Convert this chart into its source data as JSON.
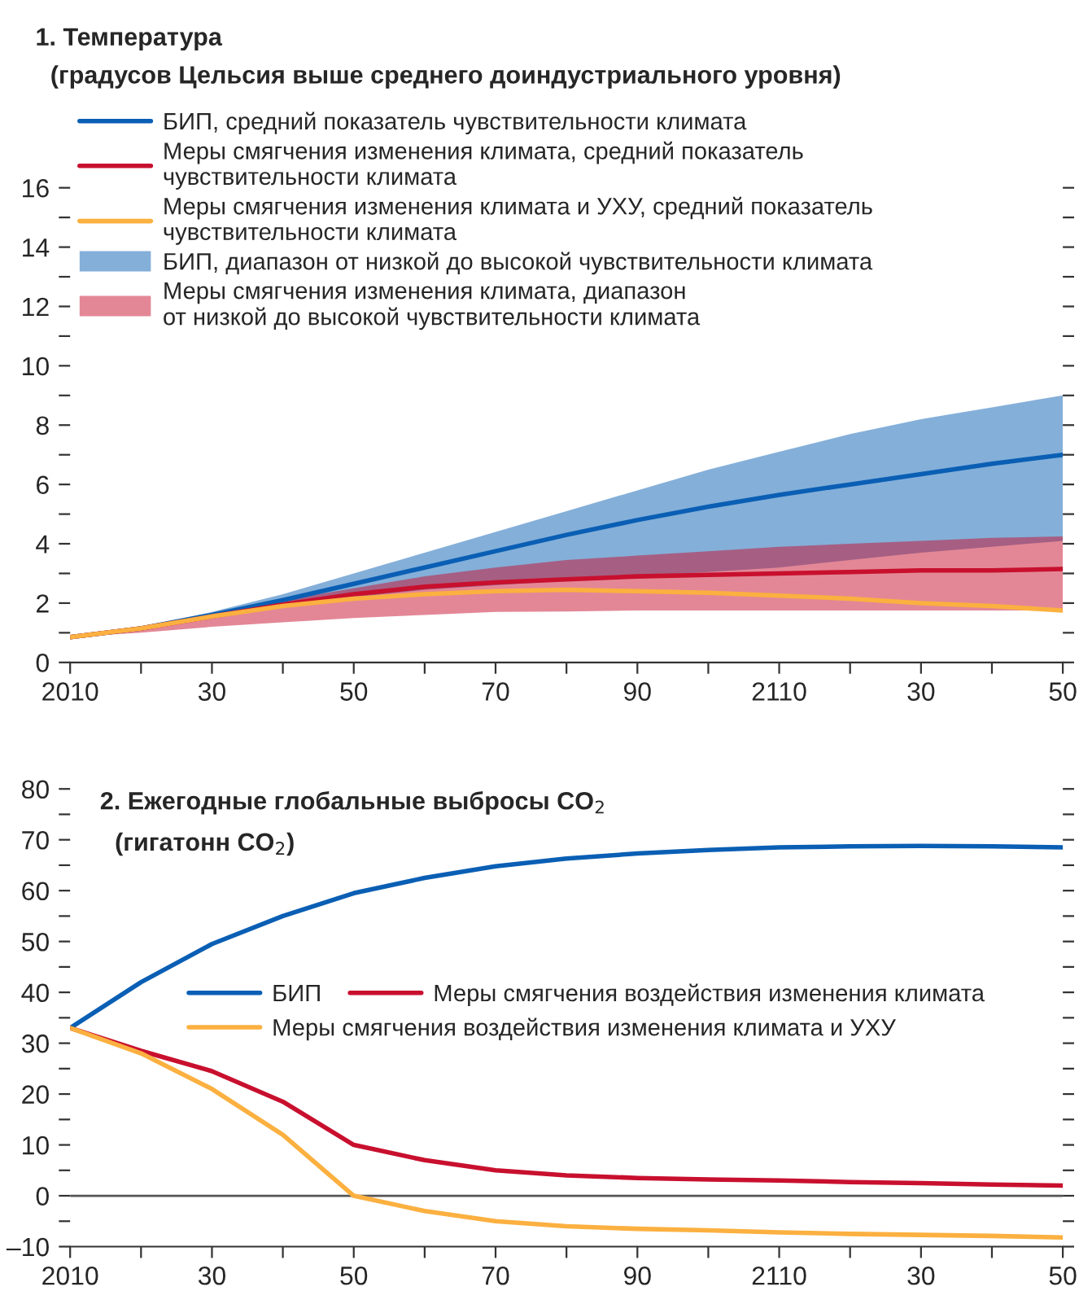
{
  "chart_data": [
    {
      "type": "line",
      "title": "1. Температура",
      "subtitle": "(градусов Цельсия выше среднего доиндустриального уровня)",
      "categories": [
        "2010",
        null,
        "30",
        null,
        "50",
        null,
        "70",
        null,
        "90",
        null,
        "2110",
        null,
        "30",
        null,
        "50"
      ],
      "series": [
        {
          "name": "БИП, средний показатель чувствительности климата",
          "color": "#0a5fb4",
          "values": [
            0.85,
            1.15,
            1.6,
            2.1,
            2.65,
            3.2,
            3.75,
            4.3,
            4.8,
            5.25,
            5.65,
            6.0,
            6.35,
            6.7,
            7.0
          ],
          "lower": [
            0.85,
            1.1,
            1.5,
            1.9,
            2.2,
            2.45,
            2.6,
            2.75,
            2.9,
            3.05,
            3.2,
            3.45,
            3.7,
            3.9,
            4.1
          ],
          "upper": [
            0.85,
            1.2,
            1.7,
            2.3,
            3.0,
            3.7,
            4.4,
            5.1,
            5.8,
            6.5,
            7.1,
            7.7,
            8.2,
            8.6,
            9.0
          ]
        },
        {
          "name": "Меры смягчения изменения климата, средний показатель\nчувствительности климата",
          "color": "#c8102e",
          "values": [
            0.85,
            1.15,
            1.55,
            1.95,
            2.3,
            2.55,
            2.7,
            2.8,
            2.9,
            2.95,
            3.0,
            3.05,
            3.1,
            3.1,
            3.15
          ],
          "lower": [
            0.85,
            1.0,
            1.2,
            1.35,
            1.5,
            1.6,
            1.7,
            1.72,
            1.75,
            1.75,
            1.75,
            1.75,
            1.75,
            1.75,
            1.75
          ],
          "upper": [
            0.85,
            1.2,
            1.65,
            2.1,
            2.5,
            2.9,
            3.2,
            3.45,
            3.6,
            3.75,
            3.9,
            4.0,
            4.1,
            4.2,
            4.25
          ]
        },
        {
          "name": "Меры смягчения изменения климата и УХУ, средний показатель\nчувствительности климата",
          "color": "#fbb040",
          "values": [
            0.85,
            1.15,
            1.55,
            1.9,
            2.15,
            2.3,
            2.4,
            2.45,
            2.4,
            2.35,
            2.25,
            2.15,
            2.0,
            1.9,
            1.75
          ]
        }
      ],
      "annotations": [
        "БИП, диапазон от низкой до высокой чувствительности климата",
        "Меры смягчения изменения климата, диапазон\nот низкой до высокой чувствительности климата"
      ],
      "ylim": [
        0,
        16
      ],
      "yticks": [
        0,
        {
          "value": 1,
          "label": null
        },
        2,
        {
          "value": 3,
          "label": null
        },
        4,
        {
          "value": 5,
          "label": null
        },
        6,
        {
          "value": 7,
          "label": null
        },
        8,
        {
          "value": 9,
          "label": null
        },
        10,
        {
          "value": 11,
          "label": null
        },
        12,
        {
          "value": 13,
          "label": null
        },
        14,
        {
          "value": 15,
          "label": null
        },
        16
      ],
      "legend": "top left",
      "grid": false
    },
    {
      "type": "line",
      "title": "2. Ежегодные глобальные выбросы CO$_{2}$",
      "subtitle": "(гигатонн CO$_{2}$)",
      "categories": [
        "2010",
        null,
        "30",
        null,
        "50",
        null,
        "70",
        null,
        "90",
        null,
        "2110",
        null,
        "30",
        null,
        "50"
      ],
      "series": [
        {
          "name": "БИП",
          "color": "#0a5fb4",
          "values": [
            33,
            42,
            49.5,
            55,
            59.5,
            62.5,
            64.8,
            66.3,
            67.3,
            68,
            68.5,
            68.7,
            68.8,
            68.7,
            68.5
          ]
        },
        {
          "name": "Меры смягчения воздействия изменения климата",
          "color": "#c8102e",
          "values": [
            33,
            28.5,
            24.5,
            18.5,
            10,
            7,
            5,
            4,
            3.5,
            3.2,
            3,
            2.7,
            2.5,
            2.2,
            2
          ]
        },
        {
          "name": "Меры смягчения воздействия изменения климата и УХУ",
          "color": "#fbb040",
          "values": [
            33,
            28,
            21,
            12,
            0,
            -3,
            -5,
            -6,
            -6.5,
            -6.8,
            -7.2,
            -7.5,
            -7.7,
            -7.9,
            -8.2
          ]
        }
      ],
      "ylim": [
        -10,
        80
      ],
      "yticks": [
        {
          "value": -10,
          "label": "–10"
        },
        {
          "value": -5,
          "label": null
        },
        0,
        {
          "value": 5,
          "label": null
        },
        10,
        {
          "value": 15,
          "label": null
        },
        20,
        {
          "value": 25,
          "label": null
        },
        30,
        {
          "value": 35,
          "label": null
        },
        40,
        {
          "value": 45,
          "label": null
        },
        50,
        {
          "value": 55,
          "label": null
        },
        60,
        {
          "value": 65,
          "label": null
        },
        70,
        {
          "value": 75,
          "label": null
        },
        80
      ],
      "ref_lines": [
        {
          "axis": "y",
          "value": 0,
          "color": "#555555"
        }
      ],
      "legend": "center",
      "grid": false
    }
  ]
}
